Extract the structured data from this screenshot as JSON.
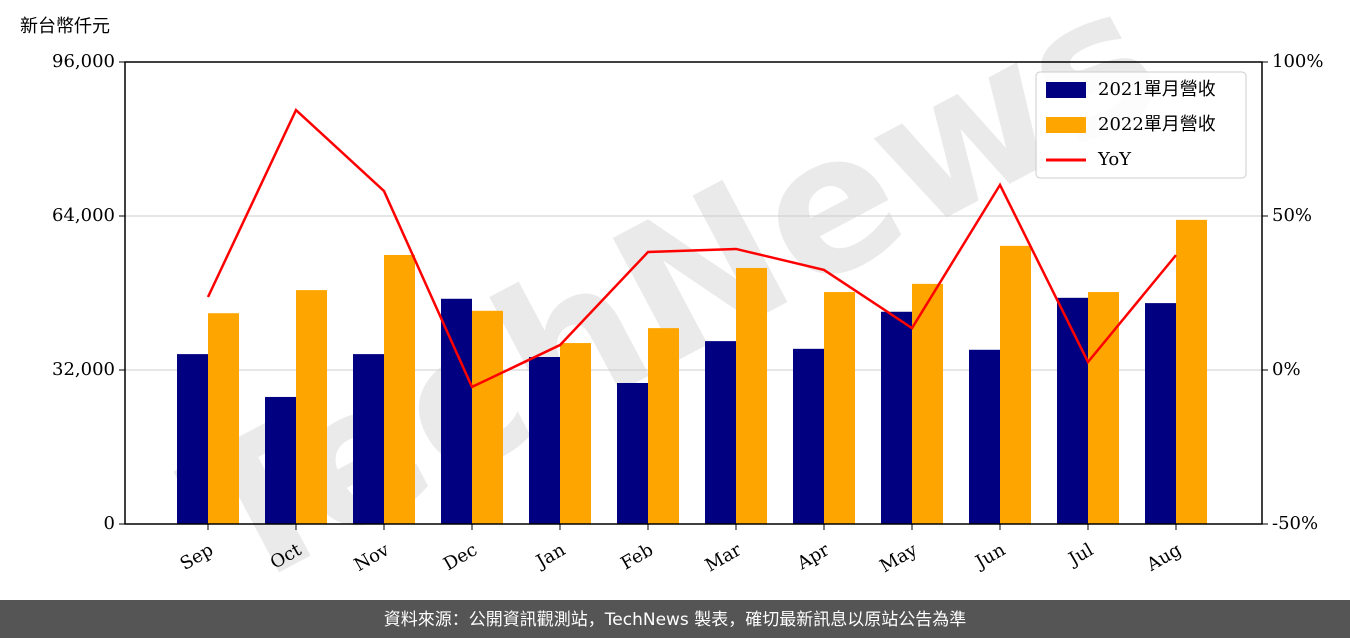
{
  "chart_data": {
    "type": "bar-line",
    "y_label": "新台幣仟元",
    "watermark": "TechNews",
    "footer": "資料來源：公開資訊觀測站，TechNews 製表，確切最新訊息以原站公告為準",
    "categories": [
      "Sep",
      "Oct",
      "Nov",
      "Dec",
      "Jan",
      "Feb",
      "Mar",
      "Apr",
      "May",
      "Jun",
      "Jul",
      "Aug"
    ],
    "series": [
      {
        "name": "2021單月營收",
        "color": "#000080",
        "type": "bar",
        "values": [
          35300,
          26400,
          35300,
          46800,
          34700,
          29300,
          38000,
          36400,
          44100,
          36200,
          47000,
          45900
        ]
      },
      {
        "name": "2022單月營收",
        "color": "#ffa500",
        "type": "bar",
        "values": [
          43800,
          48600,
          55900,
          44300,
          37600,
          40700,
          53200,
          48200,
          49900,
          57800,
          48200,
          63200
        ]
      },
      {
        "name": "YoY",
        "color": "#ff0000",
        "type": "line",
        "axis": "y2",
        "values": [
          23.7,
          84.4,
          58.1,
          -5.5,
          8.1,
          38.3,
          39.3,
          32.5,
          13.6,
          60.1,
          2.6,
          37.3
        ]
      }
    ],
    "ylim": [
      0,
      96000
    ],
    "yticks": [
      {
        "value": 0,
        "label": "0"
      },
      {
        "value": 32000,
        "label": "32,000"
      },
      {
        "value": 64000,
        "label": "64,000"
      },
      {
        "value": 96000,
        "label": "96,000"
      }
    ],
    "y2lim": [
      -50,
      100
    ],
    "y2ticks": [
      {
        "value": -50,
        "label": "-50%"
      },
      {
        "value": 0,
        "label": "0%"
      },
      {
        "value": 50,
        "label": "50%"
      },
      {
        "value": 100,
        "label": "100%"
      }
    ],
    "grid": true,
    "legend": "upper right"
  }
}
